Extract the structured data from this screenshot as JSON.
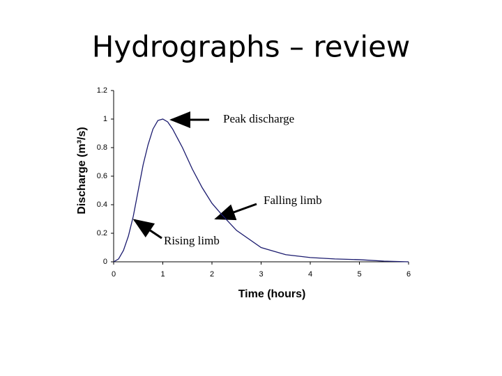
{
  "chart_data": {
    "type": "line",
    "title": "Hydrographs – review",
    "xlabel": "Time (hours)",
    "ylabel": "Discharge (m³/s)",
    "annotations": [
      "Peak discharge",
      "Falling limb",
      "Rising limb"
    ],
    "x": [
      0,
      0.1,
      0.2,
      0.3,
      0.4,
      0.5,
      0.6,
      0.7,
      0.8,
      0.9,
      1.0,
      1.1,
      1.2,
      1.4,
      1.6,
      1.8,
      2.0,
      2.2,
      2.5,
      3,
      3.5,
      4,
      4.5,
      5,
      5.5,
      6
    ],
    "series": [
      {
        "color": "#1a1a6e",
        "values": [
          0,
          0.02,
          0.08,
          0.18,
          0.32,
          0.5,
          0.68,
          0.82,
          0.93,
          0.99,
          1.0,
          0.98,
          0.93,
          0.8,
          0.65,
          0.52,
          0.41,
          0.33,
          0.22,
          0.1,
          0.05,
          0.03,
          0.02,
          0.015,
          0.005,
          0
        ]
      }
    ],
    "xlim": [
      0,
      6
    ],
    "xticks": [
      0,
      1,
      2,
      3,
      4,
      5,
      6
    ],
    "ylim": [
      0,
      1.2
    ],
    "yticks": [
      0,
      0.2,
      0.4,
      0.6,
      0.8,
      1,
      1.2
    ],
    "grid": false
  }
}
